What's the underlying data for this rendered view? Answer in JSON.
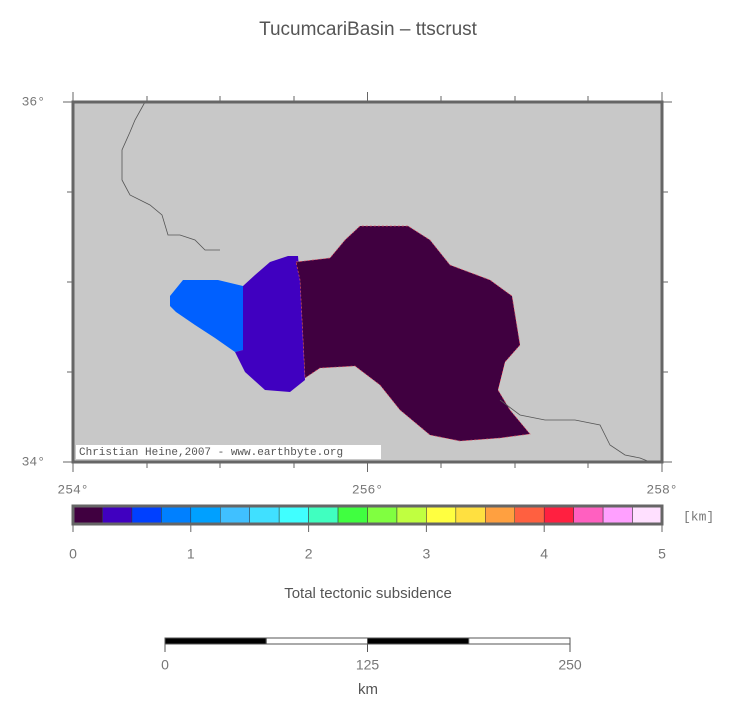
{
  "title": "TucumcariBasin – ttscrust",
  "map": {
    "lat_labels": [
      {
        "value": 36,
        "label": "36°"
      },
      {
        "value": 34,
        "label": "34°"
      }
    ],
    "lat_range": [
      34,
      36
    ],
    "lon_labels": [
      {
        "value": 254,
        "label": "254°"
      },
      {
        "value": 256,
        "label": "256°"
      },
      {
        "value": 258,
        "label": "258°"
      }
    ],
    "lon_range": [
      254,
      258
    ],
    "credit": "Christian Heine,2007 - www.earthbyte.org"
  },
  "colorbar": {
    "colors": [
      "#400040",
      "#4000c0",
      "#0040ff",
      "#0080ff",
      "#00a0ff",
      "#40c0ff",
      "#40e0ff",
      "#40ffff",
      "#40ffc0",
      "#40ff40",
      "#80ff40",
      "#c0ff40",
      "#ffff40",
      "#ffe040",
      "#ffa040",
      "#ff6040",
      "#ff2040",
      "#ff60c0",
      "#ffa0ff",
      "#ffe0ff"
    ],
    "range": [
      0,
      5
    ],
    "ticks": [
      0,
      1,
      2,
      3,
      4,
      5
    ],
    "unit": "[km]",
    "label": "Total tectonic subsidence"
  },
  "scalebar": {
    "range": [
      0,
      250
    ],
    "ticks": [
      0,
      125,
      250
    ],
    "unit": "km"
  }
}
